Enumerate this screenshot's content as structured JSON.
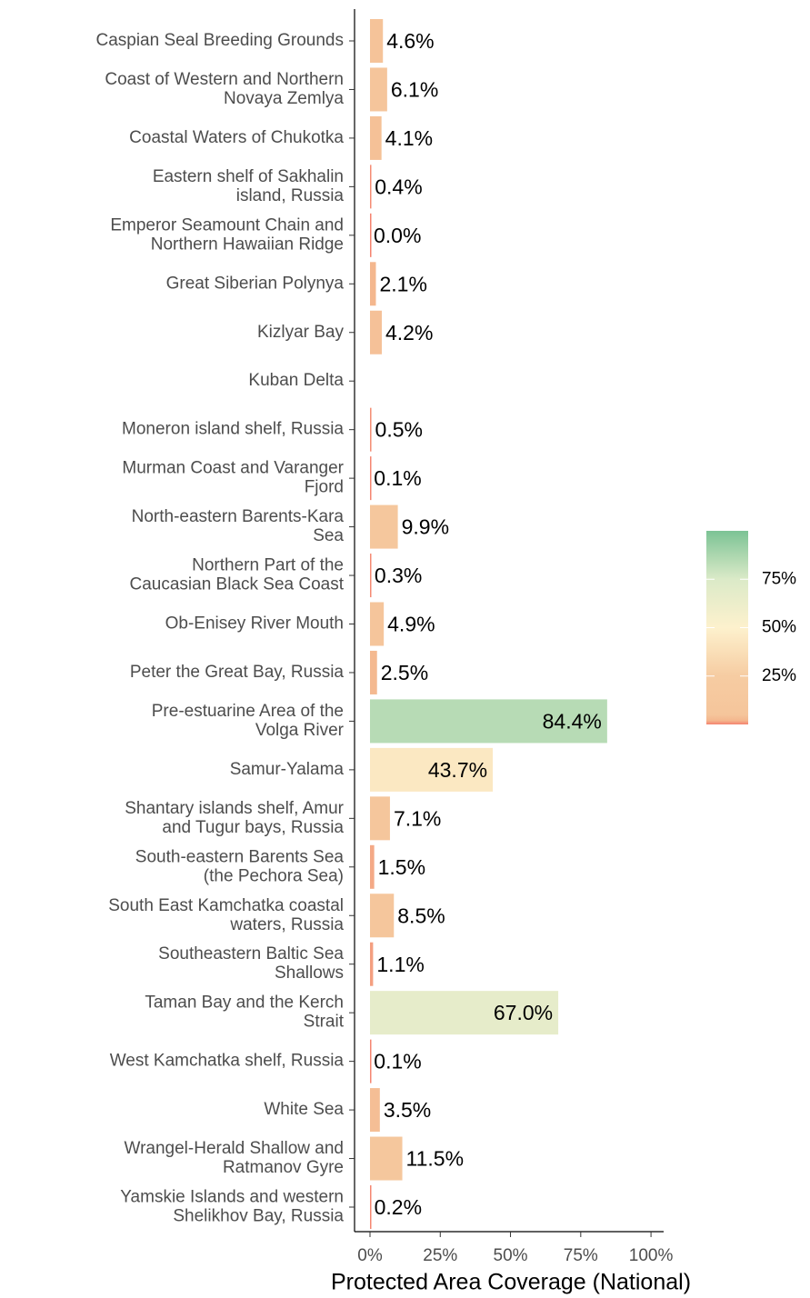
{
  "chart_data": {
    "type": "barh",
    "categories": [
      "Caspian Seal Breeding Grounds",
      "Coast of Western and Northern\nNovaya Zemlya",
      "Coastal Waters of Chukotka",
      "Eastern shelf of Sakhalin\nisland, Russia",
      "Emperor Seamount Chain and\nNorthern Hawaiian Ridge",
      "Great Siberian Polynya",
      "Kizlyar Bay",
      "Kuban Delta",
      "Moneron island shelf, Russia",
      "Murman Coast and Varanger\nFjord",
      "North-eastern Barents-Kara\nSea",
      "Northern Part of the\nCaucasian Black Sea Coast",
      "Ob-Enisey River Mouth",
      "Peter the Great Bay, Russia",
      "Pre-estuarine Area of the\nVolga River",
      "Samur-Yalama",
      "Shantary islands shelf, Amur\nand Tugur bays, Russia",
      "South-eastern Barents Sea\n(the Pechora Sea)",
      "South East Kamchatka coastal\nwaters, Russia",
      "Southeastern Baltic Sea\nShallows",
      "Taman Bay and the Kerch\nStrait",
      "West Kamchatka shelf, Russia",
      "White Sea",
      "Wrangel-Herald Shallow and\nRatmanov Gyre",
      "Yamskie Islands and western\nShelikhov Bay, Russia"
    ],
    "values": [
      4.6,
      6.1,
      4.1,
      0.4,
      0,
      2.1,
      4.2,
      null,
      0.5,
      0.1,
      9.9,
      0.3,
      4.9,
      2.5,
      84.4,
      43.7,
      7.1,
      1.5,
      8.5,
      1.1,
      67.0,
      0.1,
      3.5,
      11.5,
      0.2
    ],
    "value_labels": [
      "4.6%",
      "6.1%",
      "4.1%",
      "0.4%",
      "0.0%",
      "2.1%",
      "4.2%",
      null,
      "0.5%",
      "0.1%",
      "9.9%",
      "0.3%",
      "4.9%",
      "2.5%",
      "84.4%",
      "43.7%",
      "7.1%",
      "1.5%",
      "8.5%",
      "1.1%",
      "67.0%",
      "0.1%",
      "3.5%",
      "11.5%",
      "0.2%"
    ],
    "x_label": "Protected Area Coverage (National)",
    "xlim": [
      -5.5,
      104.5
    ],
    "xticks": [
      {
        "value": 0,
        "label": "0%"
      },
      {
        "value": 25,
        "label": "25%"
      },
      {
        "value": 50,
        "label": "50%"
      },
      {
        "value": 75,
        "label": "75%"
      },
      {
        "value": 100,
        "label": "100%"
      }
    ],
    "colorscale": [
      {
        "value": 0,
        "color": "#f4826e"
      },
      {
        "value": 2,
        "color": "#f4b68e"
      },
      {
        "value": 5,
        "color": "#f5c59b"
      },
      {
        "value": 25,
        "color": "#f6cca2"
      },
      {
        "value": 50,
        "color": "#fdf1cd"
      },
      {
        "value": 75,
        "color": "#dbeac8"
      },
      {
        "value": 100,
        "color": "#7cc395"
      }
    ],
    "colorbar_lim": [
      0,
      100
    ],
    "colorbar_ticks": [
      {
        "value": 25,
        "label": "25%"
      },
      {
        "value": 50,
        "label": "50%"
      },
      {
        "value": 75,
        "label": "75%"
      }
    ]
  }
}
